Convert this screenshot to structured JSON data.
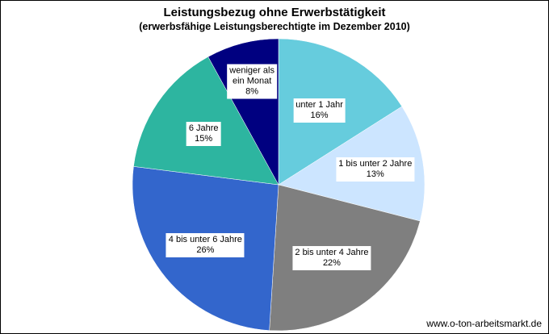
{
  "chart_data": {
    "type": "pie",
    "title": "Leistungsbezug ohne Erwerbstätigkeit",
    "subtitle": "(erwerbsfähige Leistungsberechtigte im Dezember 2010)",
    "slices": [
      {
        "label_lines": [
          "unter 1 Jahr"
        ],
        "value_text": "16%",
        "value": 16,
        "color": "#66CCDD"
      },
      {
        "label_lines": [
          "1 bis unter 2 Jahre"
        ],
        "value_text": "13%",
        "value": 13,
        "color": "#CCE5FF"
      },
      {
        "label_lines": [
          "2 bis unter 4 Jahre"
        ],
        "value_text": "22%",
        "value": 22,
        "color": "#7F7F7F"
      },
      {
        "label_lines": [
          "4 bis unter 6 Jahre"
        ],
        "value_text": "26%",
        "value": 26,
        "color": "#3366CC"
      },
      {
        "label_lines": [
          "6 Jahre"
        ],
        "value_text": "15%",
        "value": 15,
        "color": "#2DB5A0"
      },
      {
        "label_lines": [
          "weniger als",
          "ein Monat"
        ],
        "value_text": "8%",
        "value": 8,
        "color": "#000080"
      }
    ],
    "start": "top, clockwise"
  },
  "source": "www.o-ton-arbeitsmarkt.de"
}
